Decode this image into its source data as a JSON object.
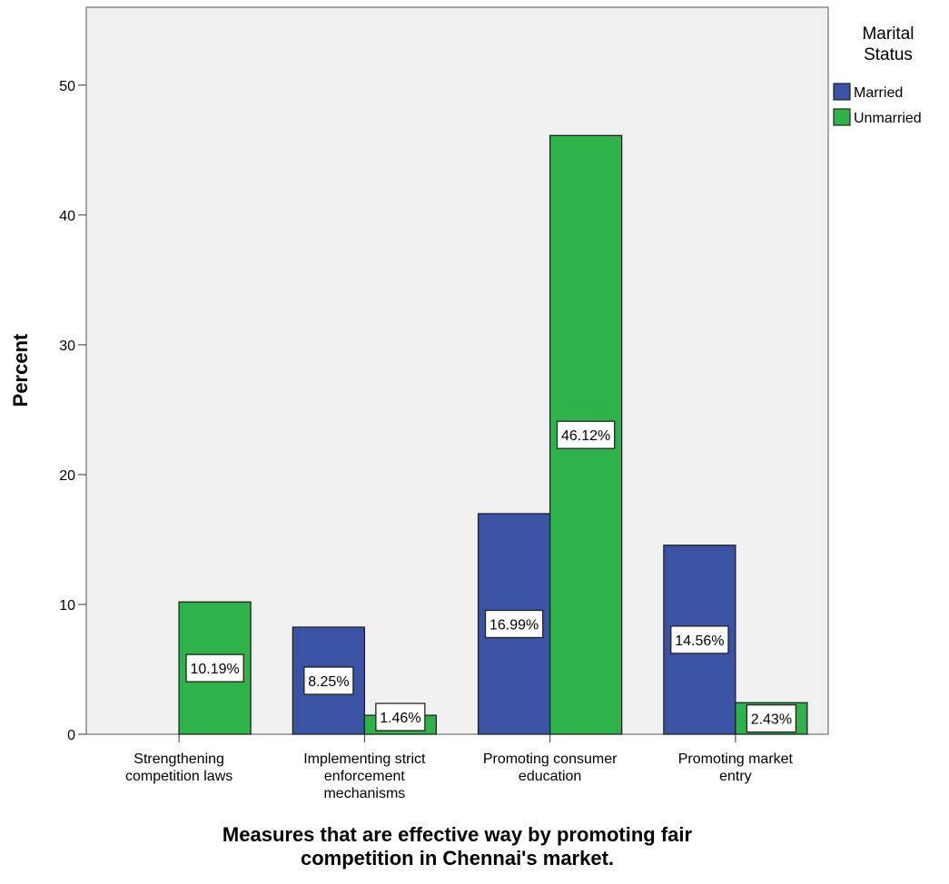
{
  "chart_data": {
    "type": "bar",
    "xlabel_lines": [
      "Measures that are effective way by promoting fair",
      "competition in Chennai's market."
    ],
    "ylabel": "Percent",
    "ylim": [
      0,
      56
    ],
    "yticks": [
      0,
      10,
      20,
      30,
      40,
      50
    ],
    "categories": [
      [
        "Strengthening",
        "competition laws"
      ],
      [
        "Implementing strict",
        "enforcement",
        "mechanisms"
      ],
      [
        "Promoting consumer",
        "education"
      ],
      [
        "Promoting market",
        "entry"
      ]
    ],
    "legend": {
      "title_lines": [
        "Marital",
        "Status"
      ],
      "placement": "right"
    },
    "series": [
      {
        "name": "Married",
        "color": "#3a53a4",
        "values": [
          null,
          8.25,
          16.99,
          14.56
        ],
        "labels": [
          "",
          "8.25%",
          "16.99%",
          "14.56%"
        ]
      },
      {
        "name": "Unmarried",
        "color": "#2db34a",
        "values": [
          10.19,
          1.46,
          46.12,
          2.43
        ],
        "labels": [
          "10.19%",
          "1.46%",
          "46.12%",
          "2.43%"
        ]
      }
    ],
    "plot_background": "#f0f0f0",
    "grid": false
  }
}
